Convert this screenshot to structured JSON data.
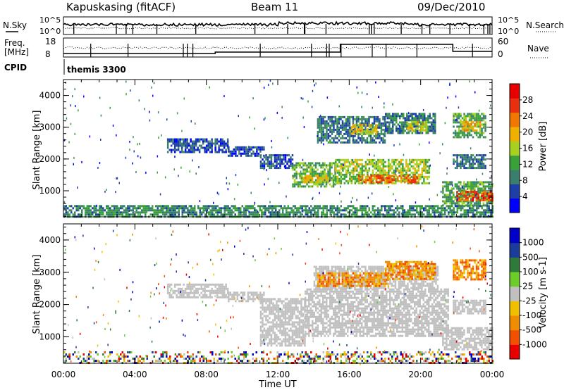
{
  "header": {
    "station": "Kapuskasing (fitACF)",
    "beam": "Beam 11",
    "date": "09/Dec/2010"
  },
  "noise_panel": {
    "left_label": "N.Sky",
    "right_label": "N.Search",
    "left_ticks": [
      "10^5",
      "10^0"
    ],
    "right_ticks": [
      "10^5",
      "10^0"
    ]
  },
  "freq_panel": {
    "left_label_line1": "Freq.",
    "left_label_line2": "[MHz]",
    "right_label": "Nave",
    "left_ticks": [
      "18",
      "8"
    ],
    "right_ticks": [
      "60",
      "0"
    ]
  },
  "cpid": {
    "label": "CPID",
    "program": "themis 3300"
  },
  "colors": {
    "ground_scatter": "#c0c0c0",
    "power_scale": [
      "#0000ff",
      "#1e3fa8",
      "#3a7f6e",
      "#3aa03a",
      "#a8d020",
      "#f0b000",
      "#f07800",
      "#e83010",
      "#e80000"
    ],
    "velocity_scale": [
      "#0000c8",
      "#1c3c9c",
      "#2f7a3a",
      "#6ccc28",
      "#c0c0c0",
      "#f0c000",
      "#f08c00",
      "#f05000",
      "#e80000"
    ]
  },
  "chart_data": [
    {
      "type": "heatmap",
      "name": "power",
      "ylabel": "Slant Range [km]",
      "xlim": [
        0,
        24
      ],
      "ylim": [
        180,
        4500
      ],
      "y_ticks": [
        "1000",
        "2000",
        "3000",
        "4000"
      ],
      "colorbar": {
        "label": "Power [dB]",
        "range": [
          0,
          32
        ],
        "tick_labels": [
          "4",
          "8",
          "12",
          "16",
          "20",
          "24",
          "28"
        ]
      },
      "regions": [
        {
          "t": [
            5.8,
            9.2
          ],
          "r": [
            2250,
            2650
          ],
          "value": 6
        },
        {
          "t": [
            9.2,
            11.2
          ],
          "r": [
            2100,
            2400
          ],
          "value": 5
        },
        {
          "t": [
            11.0,
            12.8
          ],
          "r": [
            1750,
            2150
          ],
          "value": 6
        },
        {
          "t": [
            12.8,
            15.2
          ],
          "r": [
            1150,
            1900
          ],
          "value": 13
        },
        {
          "t": [
            13.3,
            14.8
          ],
          "r": [
            1250,
            1500
          ],
          "value": 18
        },
        {
          "t": [
            15.2,
            20.5
          ],
          "r": [
            1250,
            2000
          ],
          "value": 15
        },
        {
          "t": [
            16.5,
            19.8
          ],
          "r": [
            1250,
            1500
          ],
          "value": 24
        },
        {
          "t": [
            14.2,
            18.0
          ],
          "r": [
            2500,
            3350
          ],
          "value": 8
        },
        {
          "t": [
            16.0,
            17.5
          ],
          "r": [
            2800,
            3100
          ],
          "value": 18
        },
        {
          "t": [
            18.0,
            20.8
          ],
          "r": [
            2800,
            3450
          ],
          "value": 9
        },
        {
          "t": [
            19.2,
            20.3
          ],
          "r": [
            2900,
            3200
          ],
          "value": 18
        },
        {
          "t": [
            21.8,
            23.6
          ],
          "r": [
            2700,
            3450
          ],
          "value": 12
        },
        {
          "t": [
            22.3,
            23.3
          ],
          "r": [
            2900,
            3200
          ],
          "value": 20
        },
        {
          "t": [
            21.8,
            23.6
          ],
          "r": [
            1700,
            2150
          ],
          "value": 8
        },
        {
          "t": [
            21.2,
            24.0
          ],
          "r": [
            550,
            1300
          ],
          "value": 12
        },
        {
          "t": [
            22.0,
            24.0
          ],
          "r": [
            700,
            1000
          ],
          "value": 26
        },
        {
          "t": [
            0.0,
            24.0
          ],
          "r": [
            180,
            550
          ],
          "value": 10
        }
      ]
    },
    {
      "type": "heatmap",
      "name": "velocity",
      "ylabel": "Slant Range [km]",
      "xlabel": "Time UT",
      "xlim": [
        0,
        24
      ],
      "ylim": [
        180,
        4500
      ],
      "y_ticks": [
        "1000",
        "2000",
        "3000",
        "4000"
      ],
      "x_ticks": [
        "00:00",
        "04:00",
        "08:00",
        "12:00",
        "16:00",
        "20:00",
        "00:00"
      ],
      "colorbar": {
        "label": "Velocity [m s-1]",
        "tick_labels": [
          "1000",
          "500",
          "100",
          "25",
          "-25",
          "-100",
          "-500",
          "-1000"
        ]
      },
      "regions": [
        {
          "t": [
            5.8,
            9.2
          ],
          "r": [
            2250,
            2650
          ],
          "value": "ground"
        },
        {
          "t": [
            9.2,
            11.2
          ],
          "r": [
            2100,
            2400
          ],
          "value": "ground"
        },
        {
          "t": [
            11.0,
            13.5
          ],
          "r": [
            700,
            2200
          ],
          "value": "ground"
        },
        {
          "t": [
            13.5,
            21.5
          ],
          "r": [
            1000,
            2500
          ],
          "value": "ground"
        },
        {
          "t": [
            14.0,
            21.0
          ],
          "r": [
            2500,
            3200
          ],
          "value": "ground"
        },
        {
          "t": [
            14.2,
            18.2
          ],
          "r": [
            2600,
            3000
          ],
          "value": "-100"
        },
        {
          "t": [
            18.0,
            20.8
          ],
          "r": [
            2800,
            3350
          ],
          "value": "-100"
        },
        {
          "t": [
            21.8,
            23.6
          ],
          "r": [
            2800,
            3400
          ],
          "value": "-100"
        },
        {
          "t": [
            21.8,
            23.6
          ],
          "r": [
            1700,
            2150
          ],
          "value": "ground"
        },
        {
          "t": [
            21.2,
            24.0
          ],
          "r": [
            600,
            1300
          ],
          "value": "ground"
        },
        {
          "t": [
            0.0,
            24.0
          ],
          "r": [
            180,
            550
          ],
          "value": "mixed"
        }
      ]
    }
  ]
}
